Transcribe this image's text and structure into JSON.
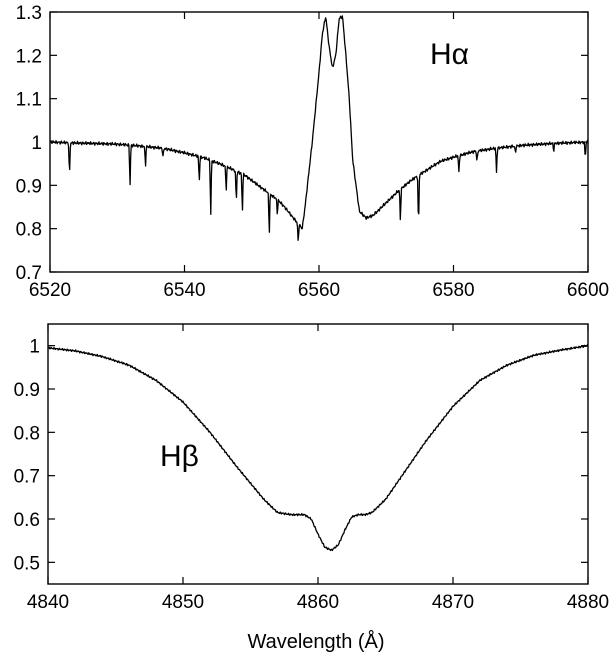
{
  "chart_data": [
    {
      "type": "line",
      "panel_label": "Hα",
      "xlabel": "",
      "ylabel": "",
      "xlim": [
        6520,
        6600
      ],
      "ylim": [
        0.7,
        1.3
      ],
      "x_ticks": [
        6520,
        6540,
        6560,
        6580,
        6600
      ],
      "x_tick_labels": [
        "6520",
        "6540",
        "6560",
        "6580",
        "6600"
      ],
      "y_ticks": [
        0.7,
        0.8,
        0.9,
        1.0,
        1.1,
        1.2,
        1.3
      ],
      "y_tick_labels": [
        "0.7",
        "0.8",
        "0.9",
        "1",
        "1.1",
        "1.2",
        "1.3"
      ],
      "grid": false,
      "series": [
        {
          "x": [
            6520,
            6523,
            6526,
            6530,
            6534,
            6537,
            6540,
            6543,
            6546,
            6549,
            6552,
            6554,
            6555,
            6556,
            6557,
            6557.5,
            6558,
            6559,
            6560,
            6560.5,
            6561,
            6561.5,
            6562,
            6562.5,
            6563,
            6563.5,
            6564,
            6564.5,
            6565,
            6566,
            6567,
            6568,
            6570,
            6572,
            6574,
            6576,
            6578,
            6580,
            6583,
            6586,
            6590,
            6595,
            6600
          ],
          "y": [
            1.0,
            0.998,
            0.997,
            0.995,
            0.99,
            0.985,
            0.975,
            0.963,
            0.945,
            0.923,
            0.888,
            0.865,
            0.848,
            0.828,
            0.81,
            0.8,
            0.86,
            1.0,
            1.16,
            1.25,
            1.29,
            1.22,
            1.17,
            1.2,
            1.285,
            1.29,
            1.2,
            1.1,
            0.96,
            0.84,
            0.825,
            0.83,
            0.86,
            0.89,
            0.915,
            0.935,
            0.955,
            0.965,
            0.978,
            0.985,
            0.992,
            0.997,
            1.0
          ]
        }
      ],
      "absorption_lines": [
        {
          "x": 6522.9,
          "y": 0.925
        },
        {
          "x": 6531.9,
          "y": 0.9
        },
        {
          "x": 6534.2,
          "y": 0.945
        },
        {
          "x": 6536.8,
          "y": 0.965
        },
        {
          "x": 6542.2,
          "y": 0.91
        },
        {
          "x": 6543.9,
          "y": 0.83
        },
        {
          "x": 6546.2,
          "y": 0.89
        },
        {
          "x": 6547.7,
          "y": 0.865
        },
        {
          "x": 6548.6,
          "y": 0.84
        },
        {
          "x": 6552.6,
          "y": 0.79
        },
        {
          "x": 6553.8,
          "y": 0.835
        },
        {
          "x": 6556.9,
          "y": 0.77
        },
        {
          "x": 6564.3,
          "y": 1.14
        },
        {
          "x": 6568.7,
          "y": 0.84
        },
        {
          "x": 6572.1,
          "y": 0.82
        },
        {
          "x": 6574.8,
          "y": 0.81
        },
        {
          "x": 6580.8,
          "y": 0.93
        },
        {
          "x": 6583.5,
          "y": 0.955
        },
        {
          "x": 6586.4,
          "y": 0.93
        },
        {
          "x": 6589.2,
          "y": 0.975
        },
        {
          "x": 6594.9,
          "y": 0.98
        },
        {
          "x": 6599.6,
          "y": 0.965
        }
      ]
    },
    {
      "type": "line",
      "panel_label": "Hβ",
      "xlabel": "Wavelength (Å)",
      "ylabel": "",
      "xlim": [
        4840,
        4880
      ],
      "ylim": [
        0.45,
        1.05
      ],
      "x_ticks": [
        4840,
        4850,
        4860,
        4870,
        4880
      ],
      "x_tick_labels": [
        "4840",
        "4850",
        "4860",
        "4870",
        "4880"
      ],
      "y_ticks": [
        0.5,
        0.6,
        0.7,
        0.8,
        0.9,
        1.0
      ],
      "y_tick_labels": [
        "0.5",
        "0.6",
        "0.7",
        "0.8",
        "0.9",
        "1"
      ],
      "grid": false,
      "series": [
        {
          "x": [
            4840,
            4842,
            4844,
            4846,
            4848,
            4850,
            4852,
            4854,
            4856,
            4857,
            4858,
            4859,
            4859.5,
            4860,
            4860.5,
            4861,
            4861.5,
            4862,
            4862.5,
            4863,
            4863.5,
            4864,
            4865,
            4866,
            4868,
            4870,
            4872,
            4874,
            4876,
            4878,
            4880
          ],
          "y": [
            0.995,
            0.988,
            0.975,
            0.955,
            0.92,
            0.87,
            0.8,
            0.72,
            0.645,
            0.615,
            0.61,
            0.61,
            0.6,
            0.565,
            0.535,
            0.528,
            0.54,
            0.575,
            0.605,
            0.61,
            0.61,
            0.615,
            0.645,
            0.69,
            0.78,
            0.86,
            0.92,
            0.955,
            0.978,
            0.99,
            1.0
          ]
        }
      ]
    }
  ]
}
